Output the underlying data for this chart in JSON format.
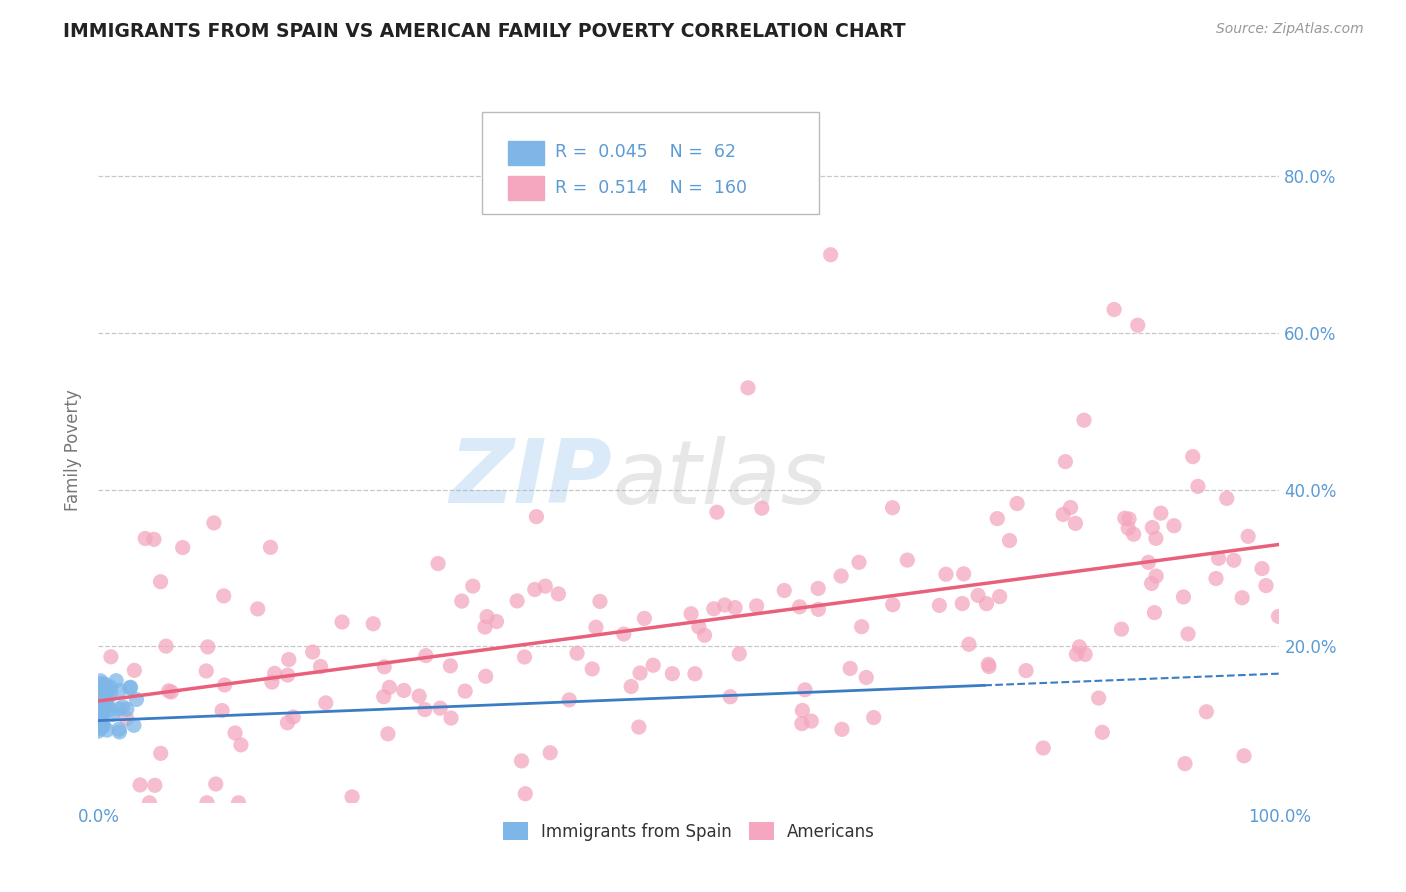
{
  "title": "IMMIGRANTS FROM SPAIN VS AMERICAN FAMILY POVERTY CORRELATION CHART",
  "source_text": "Source: ZipAtlas.com",
  "ylabel": "Family Poverty",
  "legend_entry1_label": "Immigrants from Spain",
  "legend_entry1_R": "0.045",
  "legend_entry1_N": "62",
  "legend_entry2_label": "Americans",
  "legend_entry2_R": "0.514",
  "legend_entry2_N": "160",
  "blue_color": "#7EB6E8",
  "pink_color": "#F4A7BF",
  "blue_line_color": "#3B7CC4",
  "pink_line_color": "#E8607A",
  "background_color": "#FFFFFF",
  "grid_color": "#C8C8C8",
  "title_color": "#222222",
  "axis_tick_color": "#5B9BD5",
  "ylabel_color": "#777777",
  "source_color": "#999999",
  "legend_text_color": "#5B9BD5",
  "xlim": [
    0,
    100
  ],
  "ylim": [
    0,
    90
  ],
  "yticks": [
    20,
    40,
    60,
    80
  ],
  "ytick_labels": [
    "20.0%",
    "40.0%",
    "60.0%",
    "80.0%"
  ],
  "xtick_positions": [
    0,
    100
  ],
  "xtick_labels": [
    "0.0%",
    "100.0%"
  ],
  "figsize": [
    14.06,
    8.92
  ],
  "dpi": 100,
  "pink_line_x0": 0,
  "pink_line_x1": 100,
  "pink_line_y0": 13.0,
  "pink_line_y1": 33.0,
  "blue_line_x0": 0,
  "blue_line_x1": 100,
  "blue_line_y0": 10.5,
  "blue_line_y1": 16.5,
  "blue_solid_x1": 75
}
